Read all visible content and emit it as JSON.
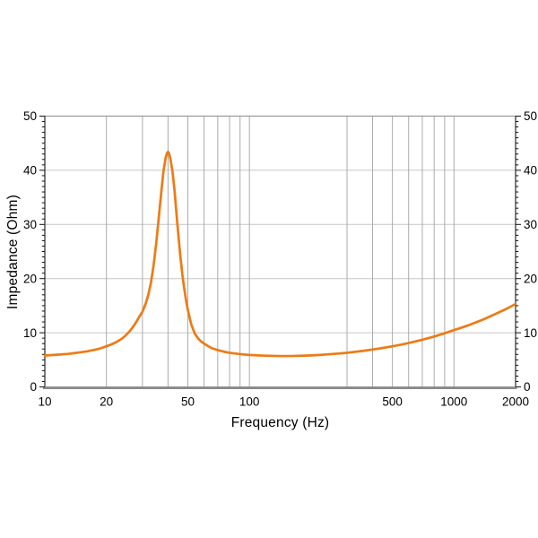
{
  "page": {
    "background": "#ffffff"
  },
  "chart_data": {
    "type": "line",
    "title": "",
    "xlabel": "Frequency (Hz)",
    "ylabel": "Impedance (Ohm)",
    "x_scale": "log",
    "xlim": [
      10,
      2000
    ],
    "ylim": [
      0,
      50
    ],
    "grid": true,
    "legend": "none",
    "x_tick_labels": [
      "10",
      "20",
      "50",
      "100",
      "500",
      "1000",
      "2000"
    ],
    "x_tick_values": [
      10,
      20,
      50,
      100,
      500,
      1000,
      2000
    ],
    "y_tick_labels": [
      "0",
      "10",
      "20",
      "30",
      "40",
      "50"
    ],
    "y_tick_values": [
      0,
      10,
      20,
      30,
      40,
      50
    ],
    "y_minor_tick_step": 1,
    "vertical_gridline_freqs": [
      20,
      30,
      40,
      50,
      60,
      70,
      80,
      90,
      100,
      300,
      400,
      500,
      600,
      700,
      800,
      900,
      1000
    ],
    "horizontal_gridline_values": [
      10,
      20,
      30,
      40
    ],
    "colors": {
      "curve": "#ED7B14",
      "vertical_grid": "#ababab",
      "horizontal_grid": "#c6c6c6",
      "top_spine": "#9a9a9a",
      "side_spine": "#2a2a2a",
      "bottom_axis": "#8c8c8c",
      "tick": "#111111",
      "text": "#000000"
    },
    "series": [
      {
        "name": "Impedance",
        "points": [
          [
            10,
            5.8
          ],
          [
            11,
            5.9
          ],
          [
            12,
            6.0
          ],
          [
            13,
            6.1
          ],
          [
            14,
            6.25
          ],
          [
            15,
            6.4
          ],
          [
            16,
            6.55
          ],
          [
            17,
            6.75
          ],
          [
            18,
            6.95
          ],
          [
            19,
            7.2
          ],
          [
            20,
            7.5
          ],
          [
            21,
            7.8
          ],
          [
            22,
            8.15
          ],
          [
            23,
            8.55
          ],
          [
            24,
            9.0
          ],
          [
            25,
            9.6
          ],
          [
            26,
            10.3
          ],
          [
            27,
            11.1
          ],
          [
            28,
            12.0
          ],
          [
            29,
            13.0
          ],
          [
            30,
            13.9
          ],
          [
            31,
            15.2
          ],
          [
            32,
            16.9
          ],
          [
            33,
            19.2
          ],
          [
            34,
            22.4
          ],
          [
            35,
            26.4
          ],
          [
            36,
            31.0
          ],
          [
            37,
            35.6
          ],
          [
            38,
            39.8
          ],
          [
            39,
            42.4
          ],
          [
            39.5,
            43.1
          ],
          [
            40,
            43.4
          ],
          [
            40.5,
            43.1
          ],
          [
            41,
            42.3
          ],
          [
            42,
            40.0
          ],
          [
            43,
            36.5
          ],
          [
            44,
            32.0
          ],
          [
            45,
            27.8
          ],
          [
            46,
            24.0
          ],
          [
            47,
            20.8
          ],
          [
            48,
            18.2
          ],
          [
            49,
            16.0
          ],
          [
            50,
            14.2
          ],
          [
            52,
            11.5
          ],
          [
            54,
            9.9
          ],
          [
            56,
            9.0
          ],
          [
            58,
            8.4
          ],
          [
            60,
            8.0
          ],
          [
            65,
            7.2
          ],
          [
            70,
            6.8
          ],
          [
            75,
            6.5
          ],
          [
            80,
            6.3
          ],
          [
            90,
            6.05
          ],
          [
            100,
            5.9
          ],
          [
            110,
            5.82
          ],
          [
            120,
            5.76
          ],
          [
            140,
            5.7
          ],
          [
            160,
            5.7
          ],
          [
            180,
            5.75
          ],
          [
            200,
            5.82
          ],
          [
            220,
            5.9
          ],
          [
            250,
            6.05
          ],
          [
            280,
            6.2
          ],
          [
            300,
            6.3
          ],
          [
            350,
            6.6
          ],
          [
            400,
            6.9
          ],
          [
            450,
            7.2
          ],
          [
            500,
            7.5
          ],
          [
            550,
            7.8
          ],
          [
            600,
            8.1
          ],
          [
            700,
            8.7
          ],
          [
            800,
            9.3
          ],
          [
            900,
            9.9
          ],
          [
            1000,
            10.5
          ],
          [
            1100,
            11.0
          ],
          [
            1200,
            11.5
          ],
          [
            1400,
            12.5
          ],
          [
            1600,
            13.5
          ],
          [
            1800,
            14.4
          ],
          [
            2000,
            15.3
          ]
        ]
      }
    ]
  }
}
